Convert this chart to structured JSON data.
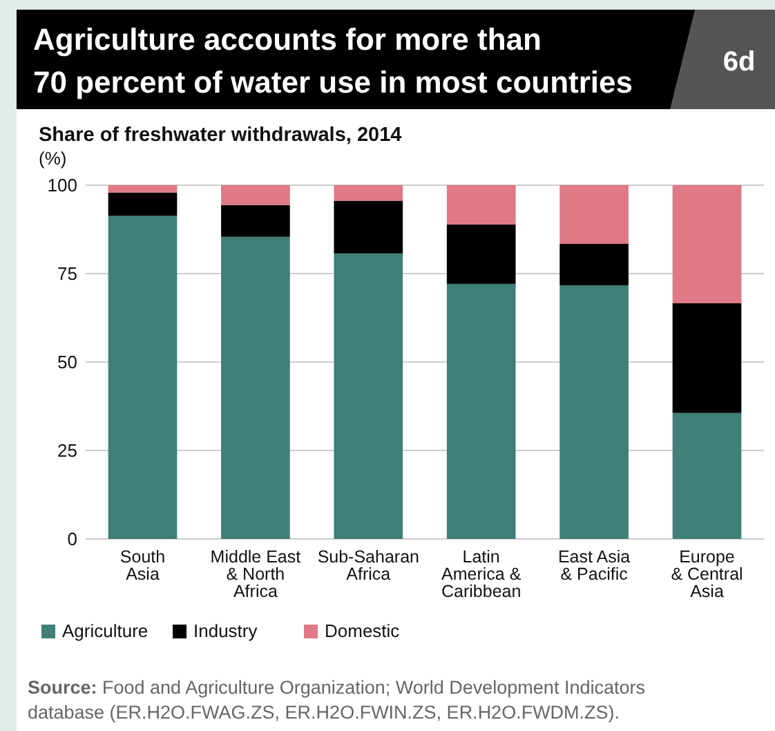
{
  "chart_data": {
    "type": "bar",
    "stacked": true,
    "title": "Agriculture accounts for more than\n70 percent of water use in most countries",
    "subtitle": "Share of freshwater withdrawals, 2014",
    "ylabel": "(%)",
    "categories": [
      "South\nAsia",
      "Middle East\n& North\nAfrica",
      "Sub-Saharan\nAfrica",
      "Latin\nAmerica &\nCaribbean",
      "East Asia\n& Pacific",
      "Europe\n& Central\nAsia"
    ],
    "series": [
      {
        "name": "Agriculture",
        "color": "#3f7f78",
        "values": [
          91.3,
          85.4,
          80.7,
          72.1,
          71.7,
          35.6
        ]
      },
      {
        "name": "Industry",
        "color": "#000000",
        "values": [
          6.6,
          9.0,
          14.9,
          16.8,
          11.7,
          31.0
        ]
      },
      {
        "name": "Domestic",
        "color": "#de7985",
        "values": [
          2.1,
          5.6,
          4.4,
          11.1,
          16.6,
          33.4
        ]
      }
    ],
    "ylim": [
      0,
      100
    ],
    "yticks": [
      0,
      25,
      50,
      75,
      100
    ],
    "grid": "y",
    "legend": "bottom left",
    "annotations": [
      "6d",
      "Source: Food and Agriculture Organization; World Development Indicators database (ER.H2O.FWAG.ZS, ER.H2O.FWIN.ZS, ER.H2O.FWDM.ZS)."
    ]
  }
}
